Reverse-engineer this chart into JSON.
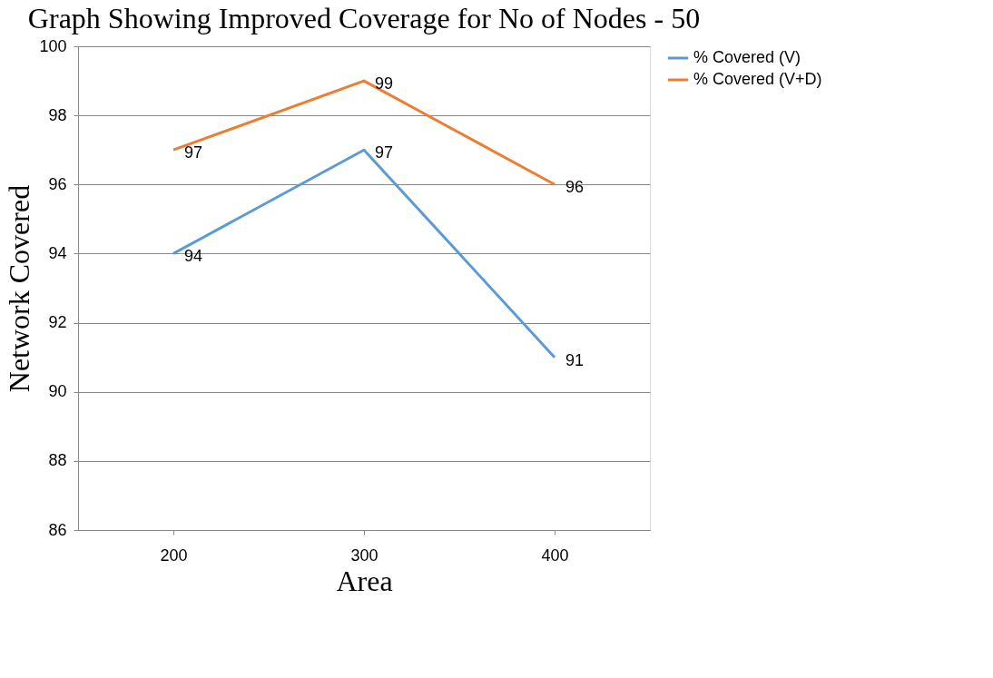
{
  "chart_data": {
    "type": "line",
    "title": "Graph Showing Improved Coverage for No of Nodes - 50",
    "xlabel": "Area",
    "ylabel": "Network Covered",
    "categories": [
      "200",
      "300",
      "400"
    ],
    "series": [
      {
        "name": "% Covered (V)",
        "color": "#5b9bd5",
        "values": [
          94,
          97,
          91
        ]
      },
      {
        "name": "% Covered (V+D)",
        "color": "#ed7d31",
        "values": [
          97,
          99,
          96
        ]
      }
    ],
    "ylim": [
      86,
      100
    ],
    "yticks": [
      86,
      88,
      90,
      92,
      94,
      96,
      98,
      100
    ],
    "grid": "y",
    "legend": "right",
    "data_labels": true
  }
}
